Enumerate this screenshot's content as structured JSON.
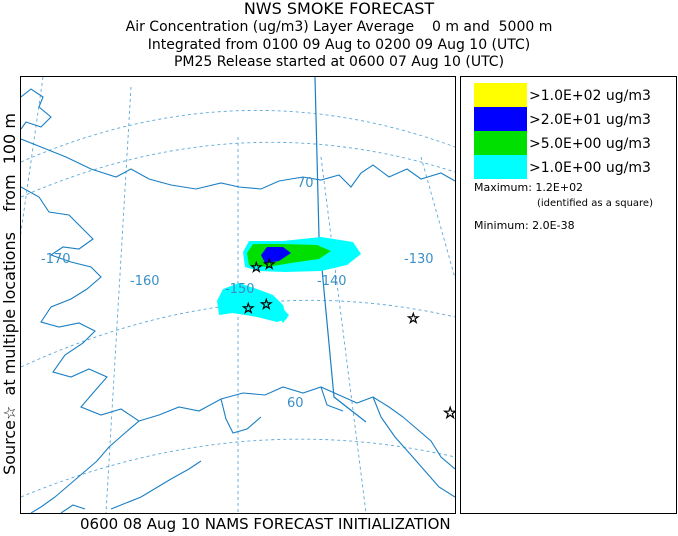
{
  "title": {
    "line1": "NWS SMOKE FORECAST",
    "line2": "Air Concentration (ug/m3) Layer Average    0 m and  5000 m",
    "line3": "Integrated from 0100 09 Aug to 0200 09 Aug 10 (UTC)",
    "line4": "PM25 Release started at 0600 07 Aug 10 (UTC)"
  },
  "side_label": "Source☆  at multiple locations    from  100 m",
  "footer": "0600 08 Aug 10 NAMS FORECAST INITIALIZATION",
  "map": {
    "graticule_labels": {
      "lon_170": "-170",
      "lon_160": "-160",
      "lon_150": "-150",
      "lon_140": "-140",
      "lon_130": "-130",
      "lat_70": "70",
      "lat_60": "60"
    },
    "colors": {
      "coast": "#1a7fc4",
      "graticule": "#5ba8d8",
      "label": "#3a8fc8",
      "level_100": "#ffff00",
      "level_20": "#0000ff",
      "level_5": "#00e000",
      "level_1": "#00ffff"
    },
    "source_marker": "star-icon"
  },
  "legend": {
    "items": [
      {
        "label": ">1.0E+02 ug/m3",
        "color": "#ffff00"
      },
      {
        "label": ">2.0E+01 ug/m3",
        "color": "#0000ff"
      },
      {
        "label": ">5.0E+00 ug/m3",
        "color": "#00e000"
      },
      {
        "label": ">1.0E+00 ug/m3",
        "color": "#00ffff"
      }
    ],
    "maximum": "Maximum: 1.2E+02",
    "maximum_note": "(identified as a square)",
    "minimum": "Minimum: 2.0E-38"
  }
}
